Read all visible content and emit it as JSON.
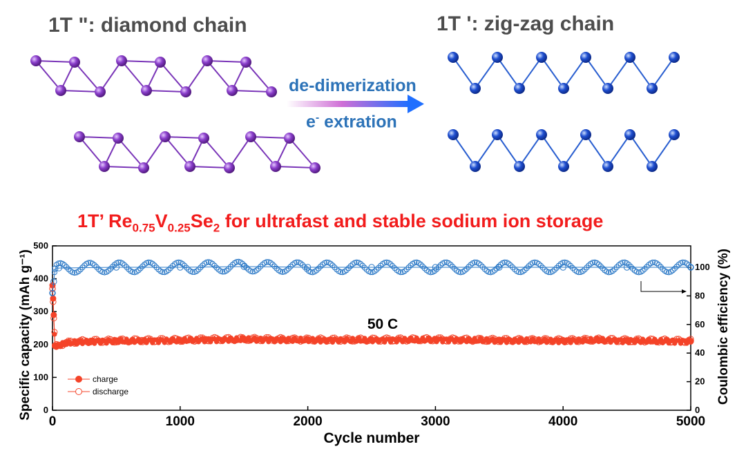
{
  "structure": {
    "left_label": "1T \": diamond chain",
    "right_label": "1T ': zig-zag chain",
    "arrow_top_label": "de-dimerization",
    "arrow_bottom_label_prefix": "e",
    "arrow_bottom_label_sup": "-",
    "arrow_bottom_label_suffix": " extration",
    "colors": {
      "diamond_atom": "#8b3fcc",
      "diamond_bond": "#7a35b8",
      "zigzag_atom": "#1f4fd0",
      "zigzag_bond": "#2a5fd0",
      "arrow_start": "#ffffff",
      "arrow_mid": "#cf6fd6",
      "arrow_end": "#1f6fff"
    }
  },
  "chart_title": {
    "p1": "1T’ Re",
    "s1": "0.75",
    "p2": "V",
    "s2": "0.25",
    "p3": "Se",
    "s3": "2",
    "p4": " for ultrafast and stable sodium ion storage"
  },
  "chart_data": {
    "type": "scatter",
    "xlabel": "Cycle number",
    "ylabel": "Specific capacity (mAh g⁻¹)",
    "y2label": "Coulombic efficiency (%)",
    "xlim": [
      0,
      5000
    ],
    "ylim": [
      0,
      500
    ],
    "y2lim": [
      0,
      115
    ],
    "xticks": [
      0,
      1000,
      2000,
      3000,
      4000,
      5000
    ],
    "yticks": [
      0,
      100,
      200,
      300,
      400,
      500
    ],
    "y2ticks": [
      0,
      20,
      40,
      60,
      80,
      100
    ],
    "annotation": "50 C",
    "legend": [
      "charge",
      "discharge"
    ],
    "legend_position": "bottom-left",
    "series": [
      {
        "name": "charge",
        "axis": "left",
        "color": "#f44328",
        "x": [
          0,
          5,
          10,
          20,
          30,
          50,
          100,
          200,
          300,
          500,
          700,
          1000,
          1200,
          1500,
          1800,
          2000,
          2500,
          3000,
          3200,
          3500,
          4000,
          4300,
          4500,
          5000
        ],
        "y": [
          380,
          340,
          290,
          195,
          193,
          196,
          203,
          207,
          209,
          210,
          211,
          212,
          214,
          215,
          214,
          213,
          213,
          214,
          213,
          212,
          211,
          213,
          211,
          209
        ]
      },
      {
        "name": "discharge",
        "axis": "left",
        "color": "#f44328",
        "x": [
          0,
          5,
          10,
          20,
          30,
          50,
          100,
          200,
          300,
          500,
          700,
          1000,
          1200,
          1500,
          1800,
          2000,
          2500,
          3000,
          3200,
          3500,
          4000,
          4300,
          4500,
          5000
        ],
        "y": [
          370,
          330,
          280,
          197,
          195,
          198,
          205,
          209,
          211,
          212,
          213,
          214,
          216,
          217,
          216,
          215,
          215,
          216,
          215,
          214,
          213,
          215,
          213,
          211
        ]
      },
      {
        "name": "Coulombic efficiency",
        "axis": "right",
        "color": "#2a78c6",
        "x": [
          0,
          10,
          20,
          50,
          500,
          1000,
          1500,
          2000,
          2500,
          3000,
          3500,
          4000,
          4500,
          5000
        ],
        "y": [
          82,
          90,
          99,
          99.5,
          100,
          100,
          100.5,
          100,
          100,
          100,
          100,
          100,
          100,
          100
        ]
      }
    ]
  }
}
